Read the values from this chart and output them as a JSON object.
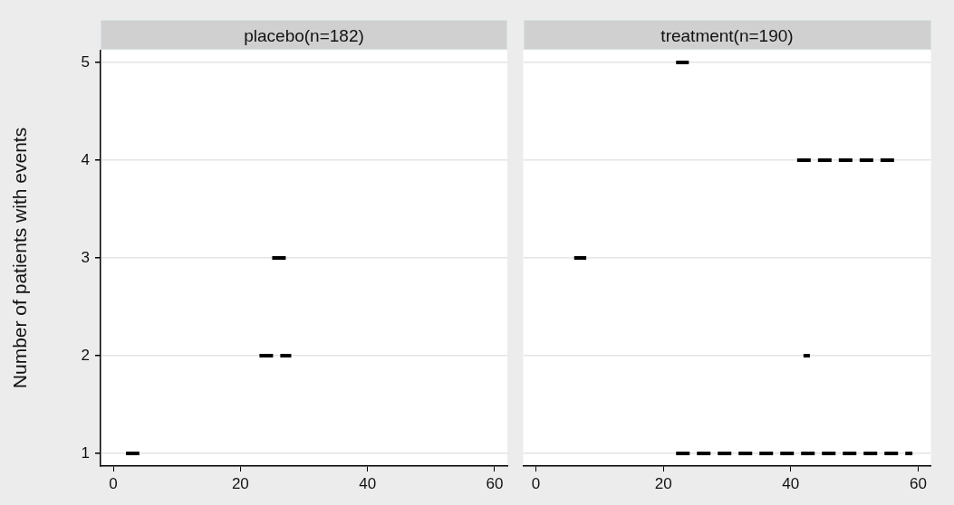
{
  "chart_data": [
    {
      "type": "line",
      "title": "placebo(n=182)",
      "ylabel": "Number of patients with events",
      "xlim": [
        -2,
        62
      ],
      "xticks": [
        0,
        20,
        40,
        60
      ],
      "ylim": [
        0.87,
        5.13
      ],
      "yticks": [
        1,
        2,
        3,
        4,
        5
      ],
      "grid": "y",
      "marker": "none",
      "line_style": "dashed",
      "series": [
        {
          "color": "#000000",
          "x": [
            2,
            4.1
          ],
          "values": [
            1,
            1
          ]
        },
        {
          "color": "#000000",
          "x": [
            23,
            28
          ],
          "values": [
            2,
            2
          ]
        },
        {
          "color": "#000000",
          "x": [
            25,
            27.5
          ],
          "values": [
            3,
            3
          ]
        }
      ]
    },
    {
      "type": "line",
      "title": "treatment(n=190)",
      "xlim": [
        -2,
        62
      ],
      "xticks": [
        0,
        20,
        40,
        60
      ],
      "ylim": [
        0.87,
        5.13
      ],
      "yticks": [
        1,
        2,
        3,
        4,
        5
      ],
      "grid": "y",
      "marker": "none",
      "line_style": "dashed",
      "tick_labels": "x",
      "series": [
        {
          "color": "#000000",
          "x": [
            22,
            59.1
          ],
          "values": [
            1,
            1
          ]
        },
        {
          "color": "#000000",
          "x": [
            42,
            43
          ],
          "values": [
            2,
            2
          ]
        },
        {
          "color": "#000000",
          "x": [
            6,
            7.9
          ],
          "values": [
            3,
            3
          ]
        },
        {
          "color": "#000000",
          "x": [
            41,
            56.4
          ],
          "values": [
            4,
            4
          ]
        },
        {
          "color": "#000000",
          "x": [
            22,
            24
          ],
          "values": [
            5,
            5
          ]
        }
      ]
    }
  ]
}
